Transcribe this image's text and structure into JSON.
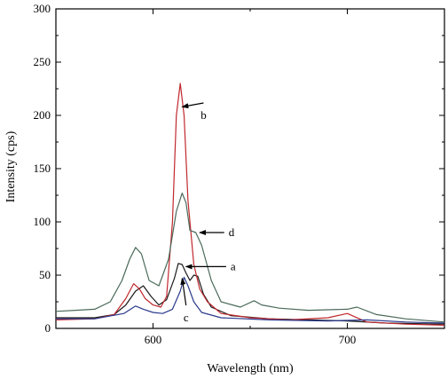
{
  "chart_data": {
    "type": "line",
    "title": "",
    "xlabel": "Wavelength (nm)",
    "ylabel": "Intensity (cps)",
    "xlim": [
      550,
      750
    ],
    "ylim": [
      0,
      300
    ],
    "xticks": [
      600,
      700
    ],
    "xtick_labels": [
      "600",
      "700"
    ],
    "yticks": [
      0,
      50,
      100,
      150,
      200,
      250,
      300
    ],
    "ytick_labels": [
      "0",
      "50",
      "100",
      "150",
      "200",
      "250",
      "300"
    ],
    "grid": false,
    "legend": "none",
    "series": [
      {
        "label": "a",
        "color": "#1a1a1a",
        "points": [
          [
            550,
            10
          ],
          [
            570,
            10
          ],
          [
            580,
            13
          ],
          [
            586,
            22
          ],
          [
            591,
            35
          ],
          [
            595,
            40
          ],
          [
            599,
            30
          ],
          [
            603,
            22
          ],
          [
            607,
            27
          ],
          [
            611,
            47
          ],
          [
            613,
            61
          ],
          [
            615,
            60
          ],
          [
            617,
            52
          ],
          [
            619,
            45
          ],
          [
            621,
            50
          ],
          [
            623,
            49
          ],
          [
            626,
            32
          ],
          [
            630,
            20
          ],
          [
            640,
            12
          ],
          [
            660,
            9
          ],
          [
            680,
            8
          ],
          [
            700,
            7
          ],
          [
            720,
            5
          ],
          [
            750,
            4
          ]
        ]
      },
      {
        "label": "b",
        "color": "#c0282d",
        "points": [
          [
            550,
            8
          ],
          [
            570,
            9
          ],
          [
            580,
            13
          ],
          [
            586,
            28
          ],
          [
            590,
            42
          ],
          [
            593,
            37
          ],
          [
            596,
            28
          ],
          [
            600,
            22
          ],
          [
            604,
            20
          ],
          [
            607,
            30
          ],
          [
            610,
            100
          ],
          [
            612,
            200
          ],
          [
            614,
            230
          ],
          [
            616,
            200
          ],
          [
            618,
            120
          ],
          [
            621,
            60
          ],
          [
            624,
            37
          ],
          [
            628,
            25
          ],
          [
            635,
            14
          ],
          [
            650,
            10
          ],
          [
            670,
            8
          ],
          [
            690,
            10
          ],
          [
            700,
            14
          ],
          [
            710,
            6
          ],
          [
            730,
            4
          ],
          [
            750,
            3
          ]
        ]
      },
      {
        "label": "c",
        "color": "#2a3a8c",
        "points": [
          [
            550,
            9
          ],
          [
            570,
            9
          ],
          [
            585,
            14
          ],
          [
            591,
            21
          ],
          [
            595,
            18
          ],
          [
            600,
            15
          ],
          [
            605,
            14
          ],
          [
            610,
            18
          ],
          [
            614,
            35
          ],
          [
            616,
            48
          ],
          [
            618,
            40
          ],
          [
            621,
            25
          ],
          [
            625,
            15
          ],
          [
            635,
            10
          ],
          [
            660,
            8
          ],
          [
            690,
            7
          ],
          [
            710,
            8
          ],
          [
            730,
            6
          ],
          [
            750,
            5
          ]
        ]
      },
      {
        "label": "d",
        "color": "#4a6a5a",
        "points": [
          [
            550,
            16
          ],
          [
            560,
            17
          ],
          [
            570,
            18
          ],
          [
            578,
            25
          ],
          [
            584,
            45
          ],
          [
            588,
            65
          ],
          [
            591,
            76
          ],
          [
            594,
            70
          ],
          [
            598,
            45
          ],
          [
            603,
            40
          ],
          [
            608,
            65
          ],
          [
            612,
            110
          ],
          [
            615,
            127
          ],
          [
            617,
            118
          ],
          [
            619,
            92
          ],
          [
            622,
            90
          ],
          [
            625,
            78
          ],
          [
            630,
            45
          ],
          [
            635,
            25
          ],
          [
            645,
            20
          ],
          [
            652,
            26
          ],
          [
            656,
            22
          ],
          [
            665,
            19
          ],
          [
            680,
            17
          ],
          [
            700,
            18
          ],
          [
            705,
            20
          ],
          [
            715,
            13
          ],
          [
            730,
            9
          ],
          [
            750,
            6
          ]
        ]
      }
    ],
    "annotations": [
      {
        "text": "b",
        "x": 626,
        "y": 200,
        "target_x": 615,
        "target_y": 208
      },
      {
        "text": "d",
        "x": 638,
        "y": 90,
        "target_x": 624,
        "target_y": 90
      },
      {
        "text": "a",
        "x": 639,
        "y": 58,
        "target_x": 617,
        "target_y": 58
      },
      {
        "text": "c",
        "x": 617,
        "y": 10,
        "target_x": 615,
        "target_y": 47
      }
    ]
  }
}
